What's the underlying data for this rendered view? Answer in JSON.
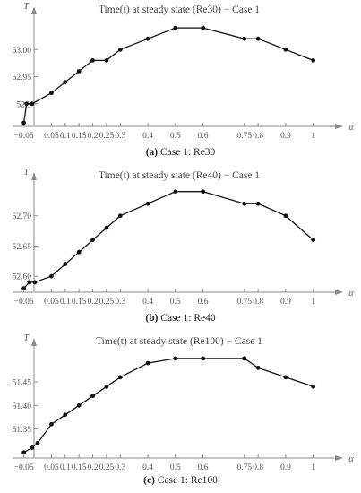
{
  "chart_data": [
    {
      "type": "line",
      "title": "Time(t) at steady state (Re30) − Case 1",
      "xlabel": "α",
      "ylabel": "T",
      "x": [
        -0.05,
        -0.04,
        -0.02,
        0.05,
        0.1,
        0.15,
        0.2,
        0.25,
        0.3,
        0.4,
        0.5,
        0.6,
        0.75,
        0.8,
        0.9,
        1.0
      ],
      "values": [
        52.865,
        52.9,
        52.9,
        52.92,
        52.94,
        52.96,
        52.98,
        52.98,
        53.0,
        53.02,
        53.04,
        53.04,
        53.02,
        53.02,
        53.0,
        52.98
      ],
      "xticks": [
        "−0.05",
        "0.05",
        "0.1",
        "0.15",
        "0.2",
        "0.25",
        "0.3",
        "0.4",
        "0.5",
        "0.6",
        "0.75",
        "0.8",
        "0.9",
        "1"
      ],
      "xtick_values": [
        -0.05,
        0.05,
        0.1,
        0.15,
        0.2,
        0.25,
        0.3,
        0.4,
        0.5,
        0.6,
        0.75,
        0.8,
        0.9,
        1.0
      ],
      "yticks": [
        "52.9",
        "52.95",
        "53.00"
      ],
      "ytick_values": [
        52.9,
        52.95,
        53.0
      ],
      "ylim": [
        52.86,
        53.055
      ],
      "xlim": [
        -0.065,
        1.04
      ]
    },
    {
      "type": "line",
      "title": "Time(t) at steady state (Re40) − Case 1",
      "xlabel": "α",
      "ylabel": "T",
      "x": [
        -0.05,
        -0.03,
        -0.01,
        0.05,
        0.1,
        0.15,
        0.2,
        0.25,
        0.3,
        0.4,
        0.5,
        0.6,
        0.75,
        0.8,
        0.9,
        1.0
      ],
      "values": [
        52.58,
        52.59,
        52.59,
        52.6,
        52.62,
        52.64,
        52.66,
        52.68,
        52.7,
        52.72,
        52.74,
        52.74,
        52.72,
        52.72,
        52.7,
        52.66
      ],
      "xticks": [
        "−0.05",
        "0.05",
        "0.1",
        "0.15",
        "0.2",
        "0.25",
        "0.3",
        "0.4",
        "0.5",
        "0.6",
        "0.75",
        "0.8",
        "0.9",
        "1"
      ],
      "xtick_values": [
        -0.05,
        0.05,
        0.1,
        0.15,
        0.2,
        0.25,
        0.3,
        0.4,
        0.5,
        0.6,
        0.75,
        0.8,
        0.9,
        1.0
      ],
      "yticks": [
        "52.60",
        "52.65",
        "52.70"
      ],
      "ytick_values": [
        52.6,
        52.65,
        52.7
      ],
      "ylim": [
        52.575,
        52.75
      ],
      "xlim": [
        -0.065,
        1.04
      ]
    },
    {
      "type": "line",
      "title": "Time(t) at steady state (Re100) − Case 1",
      "xlabel": "α",
      "ylabel": "T",
      "x": [
        -0.05,
        -0.02,
        0.0,
        0.05,
        0.1,
        0.15,
        0.2,
        0.25,
        0.3,
        0.4,
        0.5,
        0.6,
        0.75,
        0.8,
        0.9,
        1.0
      ],
      "values": [
        51.3,
        51.31,
        51.32,
        51.36,
        51.38,
        51.4,
        51.42,
        51.44,
        51.46,
        51.49,
        51.5,
        51.5,
        51.5,
        51.48,
        51.46,
        51.44
      ],
      "xticks": [
        "−0.05",
        "0.05",
        "0.1",
        "0.15",
        "0.2",
        "0.25",
        "0.3",
        "0.4",
        "0.5",
        "0.6",
        "0.75",
        "0.8",
        "0.9",
        "1"
      ],
      "xtick_values": [
        -0.05,
        0.05,
        0.1,
        0.15,
        0.2,
        0.25,
        0.3,
        0.4,
        0.5,
        0.6,
        0.75,
        0.8,
        0.9,
        1.0
      ],
      "yticks": [
        "51.35",
        "51.40",
        "51.45"
      ],
      "ytick_values": [
        51.35,
        51.4,
        51.45
      ],
      "ylim": [
        51.29,
        51.515
      ],
      "xlim": [
        -0.065,
        1.04
      ]
    }
  ],
  "captions": [
    {
      "tag": "(a)",
      "text": "Case 1: Re30"
    },
    {
      "tag": "(b)",
      "text": "Case 1: Re40"
    },
    {
      "tag": "(c)",
      "text": "Case 1: Re100"
    }
  ]
}
